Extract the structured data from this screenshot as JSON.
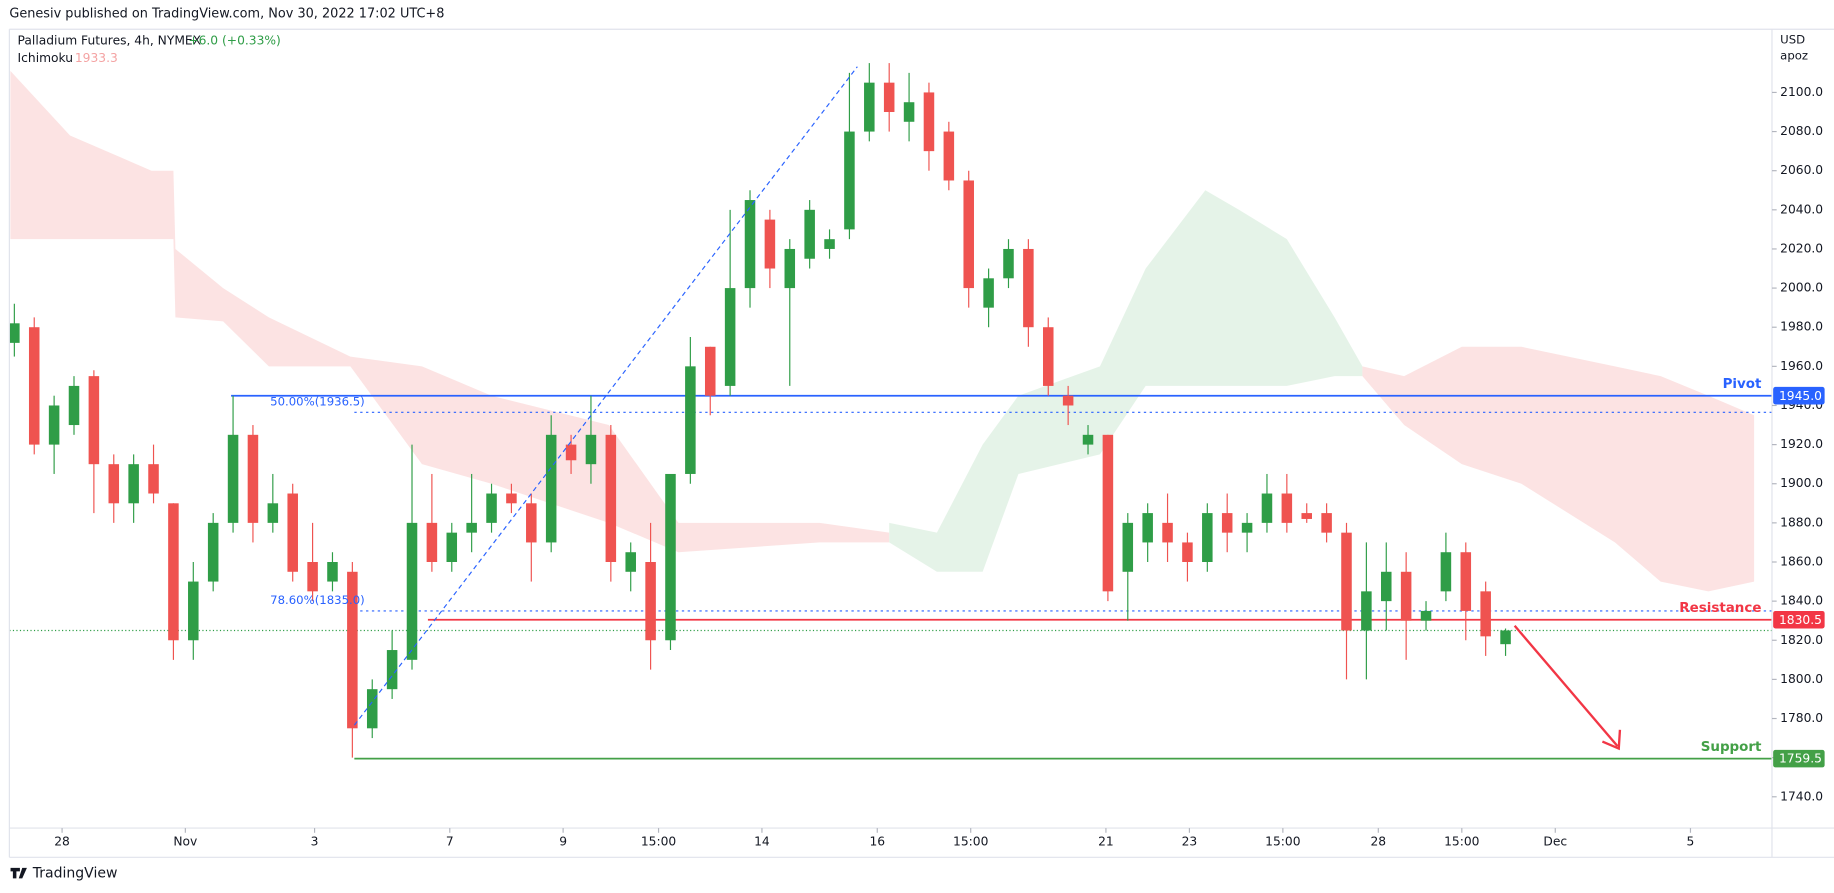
{
  "chart_data": {
    "type": "candlestick",
    "publisher": "Genesiv published on TradingView.com, Nov 30, 2022 17:02 UTC+8",
    "title": "Palladium Futures, 4h, NYMEX",
    "change": "+6.0 (+0.33%)",
    "indicator": "Ichimoku",
    "indicator_value": "1933.3",
    "currency": "USD",
    "unit": "apoz",
    "brand": "TradingView",
    "up_color": "#2f9d47",
    "down_color": "#ef5350",
    "xlim": [
      -0.25,
      88.4
    ],
    "ylim": [
      1724,
      2132.3
    ],
    "yticks": [
      {
        "value": 1740,
        "label": "1740.0"
      },
      {
        "value": 1760,
        "label": "1760.0"
      },
      {
        "value": 1780,
        "label": "1780.0"
      },
      {
        "value": 1800,
        "label": "1800.0"
      },
      {
        "value": 1820,
        "label": "1820.0"
      },
      {
        "value": 1840,
        "label": "1840.0"
      },
      {
        "value": 1860,
        "label": "1860.0"
      },
      {
        "value": 1880,
        "label": "1880.0"
      },
      {
        "value": 1900,
        "label": "1900.0"
      },
      {
        "value": 1920,
        "label": "1920.0"
      },
      {
        "value": 1940,
        "label": "1940.0"
      },
      {
        "value": 1960,
        "label": "1960.0"
      },
      {
        "value": 1980,
        "label": "1980.0"
      },
      {
        "value": 2000,
        "label": "2000.0"
      },
      {
        "value": 2020,
        "label": "2020.0"
      },
      {
        "value": 2040,
        "label": "2040.0"
      },
      {
        "value": 2060,
        "label": "2060.0"
      },
      {
        "value": 2080,
        "label": "2080.0"
      },
      {
        "value": 2100,
        "label": "2100.0"
      }
    ],
    "xticks": [
      {
        "value": 2.4,
        "label": "28"
      },
      {
        "value": 8.6,
        "label": "Nov"
      },
      {
        "value": 15.1,
        "label": "3"
      },
      {
        "value": 21.9,
        "label": "7"
      },
      {
        "value": 27.6,
        "label": "9"
      },
      {
        "value": 32.4,
        "label": "15:00"
      },
      {
        "value": 37.6,
        "label": "14"
      },
      {
        "value": 43.4,
        "label": "16"
      },
      {
        "value": 48.1,
        "label": "15:00"
      },
      {
        "value": 54.9,
        "label": "21"
      },
      {
        "value": 59.1,
        "label": "23"
      },
      {
        "value": 63.8,
        "label": "15:00"
      },
      {
        "value": 68.6,
        "label": "28"
      },
      {
        "value": 72.8,
        "label": "15:00"
      },
      {
        "value": 77.5,
        "label": "Dec"
      },
      {
        "value": 84.3,
        "label": "5"
      }
    ],
    "open": [
      1972,
      1980,
      1920,
      1930,
      1955,
      1910,
      1890,
      1910,
      1890,
      1820,
      1850,
      1880,
      1925,
      1880,
      1895,
      1860,
      1850,
      1855,
      1775,
      1795,
      1810,
      1880,
      1860,
      1875,
      1880,
      1895,
      1890,
      1870,
      1920,
      1910,
      1925,
      1855,
      1860,
      1820,
      1905,
      1970,
      1950,
      2000,
      2035,
      2000,
      2015,
      2020,
      2030,
      2080,
      2105,
      2085,
      2100,
      2080,
      2055,
      1990,
      2005,
      2020,
      1980,
      1945,
      1920,
      1925,
      1855,
      1870,
      1880,
      1870,
      1860,
      1885,
      1875,
      1880,
      1895,
      1885,
      1885,
      1875,
      1825,
      1840,
      1855,
      1830,
      1845,
      1865,
      1845,
      1818
    ],
    "high": [
      1992,
      1985,
      1945,
      1955,
      1958,
      1915,
      1915,
      1920,
      1890,
      1860,
      1885,
      1945,
      1930,
      1905,
      1900,
      1880,
      1865,
      1860,
      1800,
      1825,
      1920,
      1905,
      1880,
      1905,
      1900,
      1900,
      1895,
      1935,
      1925,
      1945,
      1930,
      1870,
      1880,
      1905,
      1975,
      1970,
      2040,
      2050,
      2040,
      2025,
      2045,
      2030,
      2110,
      2115,
      2115,
      2110,
      2105,
      2085,
      2060,
      2010,
      2025,
      2025,
      1985,
      1950,
      1930,
      1925,
      1885,
      1890,
      1895,
      1875,
      1890,
      1895,
      1885,
      1905,
      1905,
      1890,
      1890,
      1880,
      1870,
      1870,
      1865,
      1840,
      1875,
      1870,
      1850,
      1826
    ],
    "low": [
      1965,
      1915,
      1905,
      1925,
      1885,
      1880,
      1880,
      1890,
      1810,
      1810,
      1845,
      1875,
      1870,
      1875,
      1850,
      1840,
      1845,
      1760,
      1770,
      1790,
      1805,
      1855,
      1855,
      1865,
      1875,
      1885,
      1850,
      1865,
      1905,
      1900,
      1850,
      1845,
      1805,
      1815,
      1900,
      1935,
      1945,
      1990,
      2000,
      1950,
      2010,
      2015,
      2025,
      2075,
      2080,
      2075,
      2060,
      2050,
      1990,
      1980,
      2000,
      1970,
      1945,
      1930,
      1915,
      1840,
      1830,
      1860,
      1860,
      1850,
      1855,
      1865,
      1865,
      1875,
      1875,
      1880,
      1870,
      1800,
      1800,
      1825,
      1810,
      1825,
      1840,
      1820,
      1812,
      1812
    ],
    "close": [
      1982,
      1920,
      1940,
      1950,
      1910,
      1890,
      1910,
      1895,
      1820,
      1850,
      1880,
      1925,
      1880,
      1890,
      1855,
      1845,
      1860,
      1775,
      1795,
      1815,
      1880,
      1860,
      1875,
      1880,
      1895,
      1890,
      1870,
      1925,
      1912,
      1925,
      1860,
      1865,
      1820,
      1905,
      1960,
      1945,
      2000,
      2045,
      2010,
      2020,
      2040,
      2025,
      2080,
      2105,
      2090,
      2095,
      2070,
      2055,
      2000,
      2005,
      2020,
      1980,
      1950,
      1940,
      1925,
      1845,
      1880,
      1885,
      1870,
      1860,
      1885,
      1875,
      1880,
      1895,
      1880,
      1882,
      1875,
      1825,
      1845,
      1855,
      1830,
      1835,
      1865,
      1835,
      1822,
      1825
    ],
    "cloud": [
      {
        "color": "#fbdcdc",
        "x": [
          -0.2,
          2.8,
          6.9,
          8.0,
          8.1,
          10.5,
          12.8,
          16.9,
          20.5,
          24,
          29.9,
          33.4,
          40.5,
          44
        ],
        "upper": [
          2111,
          2078,
          2060,
          2060,
          2020,
          2000,
          1985,
          1965,
          1960,
          1945,
          1930,
          1880,
          1880,
          1875
        ],
        "lower": [
          2025,
          2025,
          2025,
          2025,
          1985,
          1983,
          1960,
          1960,
          1910,
          1900,
          1880,
          1865,
          1870,
          1870
        ]
      },
      {
        "color": "#dff0e2",
        "x": [
          44,
          46.4,
          48.7,
          50.5,
          54.6,
          56.9,
          59.9,
          61.6,
          64,
          66.4,
          67.8
        ],
        "upper": [
          1880,
          1875,
          1920,
          1945,
          1960,
          2010,
          2050,
          2040,
          2025,
          1985,
          1960
        ],
        "lower": [
          1870,
          1855,
          1855,
          1905,
          1915,
          1950,
          1950,
          1950,
          1950,
          1955,
          1955
        ]
      },
      {
        "color": "#fbdcdc",
        "x": [
          67.8,
          69.9,
          72.8,
          75.8,
          80.5,
          82.8,
          85.2,
          87.5
        ],
        "upper": [
          1960,
          1955,
          1970,
          1970,
          1960,
          1955,
          1945,
          1935
        ],
        "lower": [
          1955,
          1930,
          1910,
          1900,
          1870,
          1850,
          1845,
          1850
        ]
      }
    ],
    "levels": [
      {
        "name": "Pivot",
        "value": 1945.0,
        "label": "1945.0",
        "start": 10.9,
        "color": "#2962ff"
      },
      {
        "name": "Resistance",
        "value": 1830.5,
        "label": "1830.5",
        "start": 20.8,
        "color": "#f23645"
      },
      {
        "name": "Support",
        "value": 1759.5,
        "label": "1759.5",
        "start": 17.1,
        "color": "#43a047"
      }
    ],
    "fib": [
      {
        "value": 1936.5,
        "label": "50.00%(1936.5)",
        "start": 17.1
      },
      {
        "value": 1835.0,
        "label": "78.60%(1835.0)",
        "start": 17.1
      }
    ]
  }
}
